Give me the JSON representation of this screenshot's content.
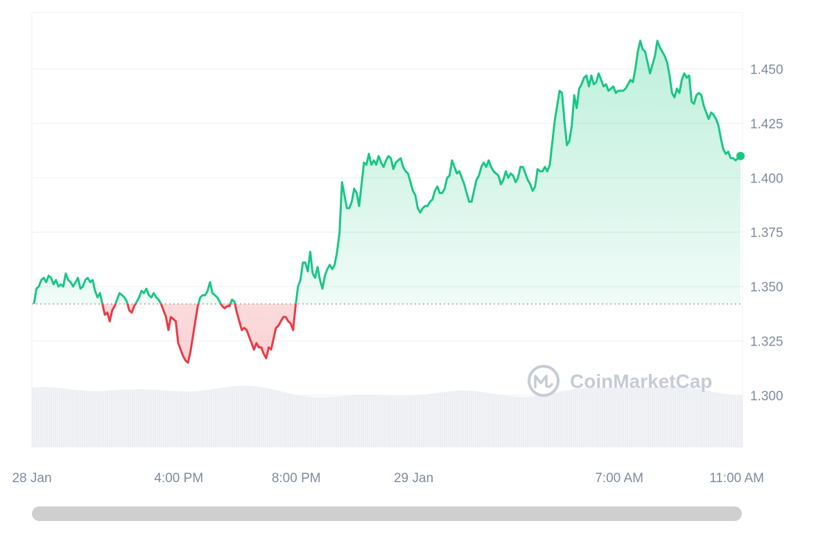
{
  "chart_data": {
    "type": "line",
    "ylim": [
      1.276,
      1.476
    ],
    "y_ticks": [
      "1.450",
      "1.425",
      "1.400",
      "1.375",
      "1.350",
      "1.325",
      "1.300"
    ],
    "x_ticks": [
      "28 Jan",
      "4:00 PM",
      "8:00 PM",
      "29 Jan",
      "7:00 AM",
      "11:00 AM"
    ],
    "x_tick_hours": [
      11,
      16,
      20,
      24,
      31,
      35
    ],
    "x_range_hours": [
      11,
      35.2
    ],
    "reference_price": 1.342,
    "grid": "horizontal",
    "series": [
      {
        "values": [
          1.342,
          1.349,
          1.35,
          1.353,
          1.354,
          1.352,
          1.355,
          1.354,
          1.351,
          1.353,
          1.35,
          1.351,
          1.35,
          1.356,
          1.353,
          1.352,
          1.35,
          1.352,
          1.354,
          1.349,
          1.35,
          1.353,
          1.354,
          1.352,
          1.353,
          1.348,
          1.345,
          1.347,
          1.342,
          1.337,
          1.338,
          1.334,
          1.339,
          1.341,
          1.344,
          1.347,
          1.346,
          1.345,
          1.343,
          1.339,
          1.338,
          1.341,
          1.343,
          1.345,
          1.348,
          1.347,
          1.349,
          1.346,
          1.345,
          1.347,
          1.345,
          1.344,
          1.342,
          1.339,
          1.336,
          1.33,
          1.336,
          1.335,
          1.334,
          1.324,
          1.321,
          1.318,
          1.316,
          1.315,
          1.32,
          1.327,
          1.334,
          1.341,
          1.345,
          1.346,
          1.346,
          1.348,
          1.352,
          1.347,
          1.346,
          1.345,
          1.343,
          1.341,
          1.34,
          1.341,
          1.341,
          1.344,
          1.343,
          1.338,
          1.334,
          1.33,
          1.331,
          1.33,
          1.327,
          1.324,
          1.321,
          1.324,
          1.322,
          1.322,
          1.319,
          1.317,
          1.322,
          1.321,
          1.326,
          1.331,
          1.332,
          1.334,
          1.336,
          1.336,
          1.334,
          1.333,
          1.33,
          1.341,
          1.35,
          1.353,
          1.361,
          1.361,
          1.357,
          1.366,
          1.356,
          1.354,
          1.359,
          1.353,
          1.349,
          1.355,
          1.358,
          1.36,
          1.358,
          1.36,
          1.366,
          1.375,
          1.398,
          1.392,
          1.386,
          1.386,
          1.389,
          1.395,
          1.393,
          1.387,
          1.397,
          1.407,
          1.406,
          1.411,
          1.406,
          1.408,
          1.406,
          1.41,
          1.407,
          1.405,
          1.408,
          1.41,
          1.409,
          1.404,
          1.407,
          1.408,
          1.409,
          1.405,
          1.403,
          1.402,
          1.398,
          1.394,
          1.392,
          1.386,
          1.384,
          1.386,
          1.387,
          1.387,
          1.389,
          1.39,
          1.394,
          1.396,
          1.393,
          1.393,
          1.395,
          1.4,
          1.401,
          1.408,
          1.405,
          1.402,
          1.403,
          1.4,
          1.397,
          1.393,
          1.389,
          1.389,
          1.394,
          1.399,
          1.401,
          1.405,
          1.407,
          1.405,
          1.408,
          1.405,
          1.403,
          1.402,
          1.401,
          1.397,
          1.399,
          1.403,
          1.4,
          1.402,
          1.401,
          1.398,
          1.4,
          1.405,
          1.405,
          1.402,
          1.399,
          1.397,
          1.394,
          1.396,
          1.404,
          1.403,
          1.403,
          1.405,
          1.403,
          1.406,
          1.416,
          1.426,
          1.433,
          1.44,
          1.439,
          1.426,
          1.415,
          1.417,
          1.424,
          1.438,
          1.432,
          1.441,
          1.443,
          1.446,
          1.447,
          1.442,
          1.447,
          1.443,
          1.444,
          1.448,
          1.445,
          1.442,
          1.443,
          1.44,
          1.441,
          1.442,
          1.439,
          1.44,
          1.44,
          1.44,
          1.441,
          1.443,
          1.445,
          1.444,
          1.45,
          1.458,
          1.463,
          1.459,
          1.458,
          1.453,
          1.448,
          1.452,
          1.456,
          1.463,
          1.46,
          1.458,
          1.456,
          1.453,
          1.447,
          1.439,
          1.437,
          1.441,
          1.439,
          1.445,
          1.448,
          1.446,
          1.447,
          1.435,
          1.434,
          1.438,
          1.439,
          1.438,
          1.433,
          1.43,
          1.427,
          1.43,
          1.429,
          1.427,
          1.424,
          1.418,
          1.413,
          1.411,
          1.412,
          1.409,
          1.409,
          1.408,
          1.409,
          1.41
        ]
      }
    ],
    "colors": {
      "up": "#16c784",
      "down": "#ea3943"
    }
  },
  "watermark": {
    "text": "CoinMarketCap"
  },
  "scrollbar": {
    "position": 1.0
  }
}
